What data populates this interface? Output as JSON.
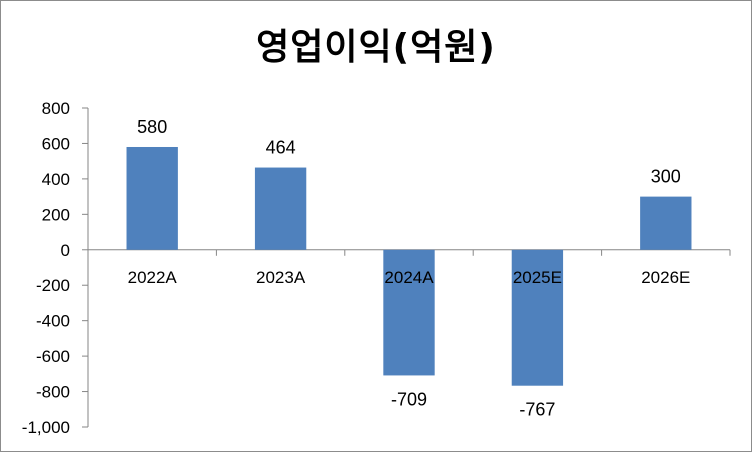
{
  "chart_data": {
    "type": "bar",
    "title": "영업이익(억원)",
    "xlabel": "",
    "ylabel": "",
    "categories": [
      "2022A",
      "2023A",
      "2024A",
      "2025E",
      "2026E"
    ],
    "values": [
      580,
      464,
      -709,
      -767,
      300
    ],
    "data_labels": [
      "580",
      "464",
      "-709",
      "-767",
      "300"
    ],
    "ylim": [
      -1000,
      800
    ],
    "y_ticks": [
      800,
      600,
      400,
      200,
      0,
      -200,
      -400,
      -600,
      -800,
      -1000
    ],
    "y_tick_labels": [
      "800",
      "600",
      "400",
      "200",
      "0",
      "-200",
      "-400",
      "-600",
      "-800",
      "-1,000"
    ],
    "grid": false,
    "legend": "none",
    "bar_color": "#4f81bd"
  }
}
